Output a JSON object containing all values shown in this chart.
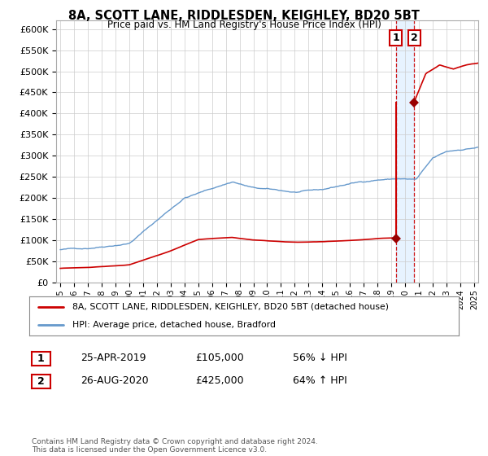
{
  "title": "8A, SCOTT LANE, RIDDLESDEN, KEIGHLEY, BD20 5BT",
  "subtitle": "Price paid vs. HM Land Registry's House Price Index (HPI)",
  "hpi_color": "#6699cc",
  "price_color": "#cc0000",
  "marker_color": "#990000",
  "dashed_line_color": "#cc0000",
  "shade_color": "#ddeeff",
  "background_color": "#ffffff",
  "grid_color": "#cccccc",
  "ylim": [
    0,
    620000
  ],
  "yticks": [
    0,
    50000,
    100000,
    150000,
    200000,
    250000,
    300000,
    350000,
    400000,
    450000,
    500000,
    550000,
    600000
  ],
  "transaction1": {
    "date_num": 2019.32,
    "price": 105000,
    "label": "1",
    "date_str": "25-APR-2019",
    "pct": "56%",
    "dir": "↓"
  },
  "transaction2": {
    "date_num": 2020.65,
    "price": 425000,
    "label": "2",
    "date_str": "26-AUG-2020",
    "pct": "64%",
    "dir": "↑"
  },
  "legend_line1": "8A, SCOTT LANE, RIDDLESDEN, KEIGHLEY, BD20 5BT (detached house)",
  "legend_line2": "HPI: Average price, detached house, Bradford",
  "footer": "Contains HM Land Registry data © Crown copyright and database right 2024.\nThis data is licensed under the Open Government Licence v3.0.",
  "xstart": 1995,
  "xend": 2025
}
